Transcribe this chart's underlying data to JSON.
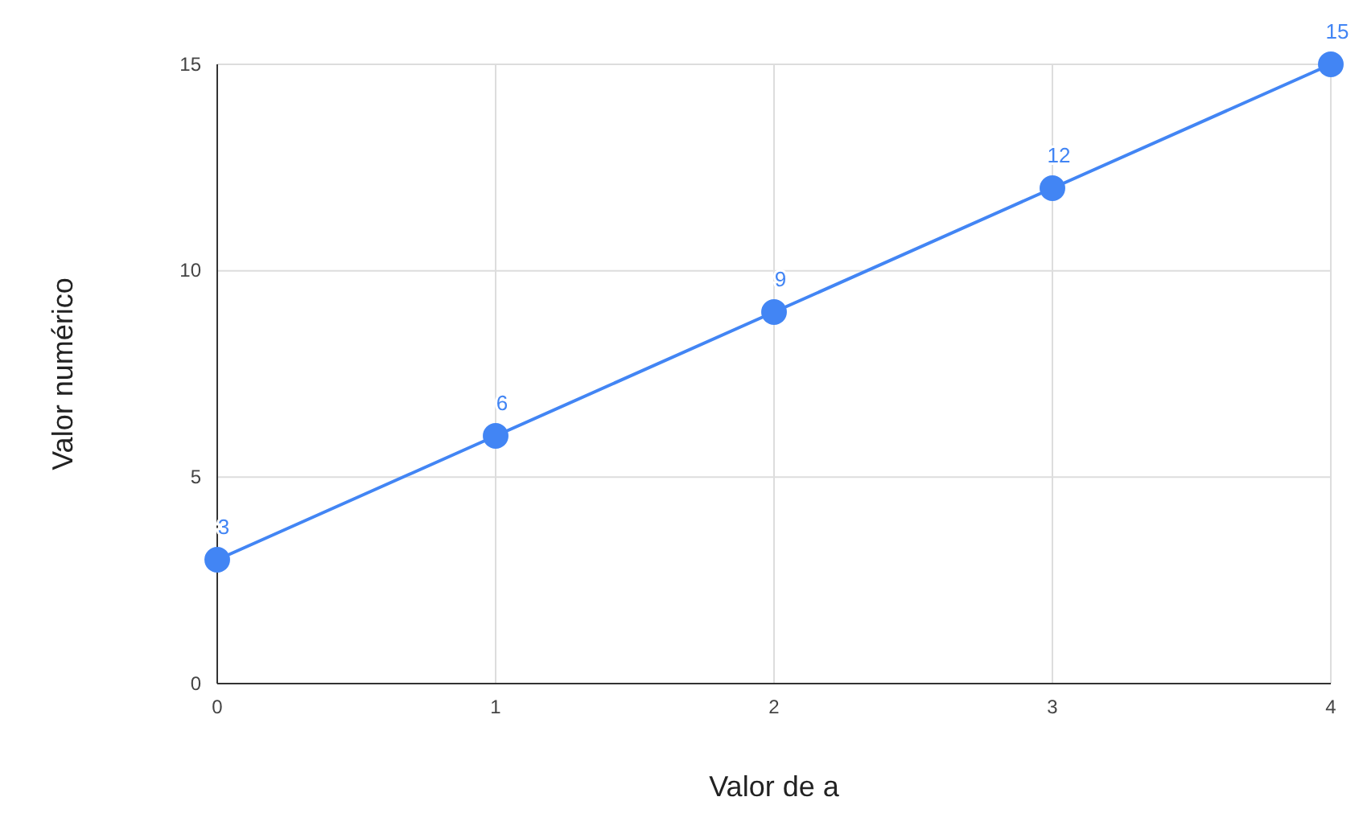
{
  "chart_data": {
    "type": "line",
    "xlabel": "Valor de a",
    "ylabel": "Valor numérico",
    "x": [
      0,
      1,
      2,
      3,
      4
    ],
    "series": [
      {
        "color": "#4285f4",
        "values": [
          3,
          6,
          9,
          12,
          15
        ]
      }
    ],
    "xlim": [
      0,
      4
    ],
    "xticks": [
      0,
      1,
      2,
      3,
      4
    ],
    "ylim": [
      0,
      15
    ],
    "yticks": [
      0,
      5,
      10,
      15
    ],
    "grid": true,
    "marker": "circle",
    "line_style": "solid",
    "data_labels": true
  }
}
